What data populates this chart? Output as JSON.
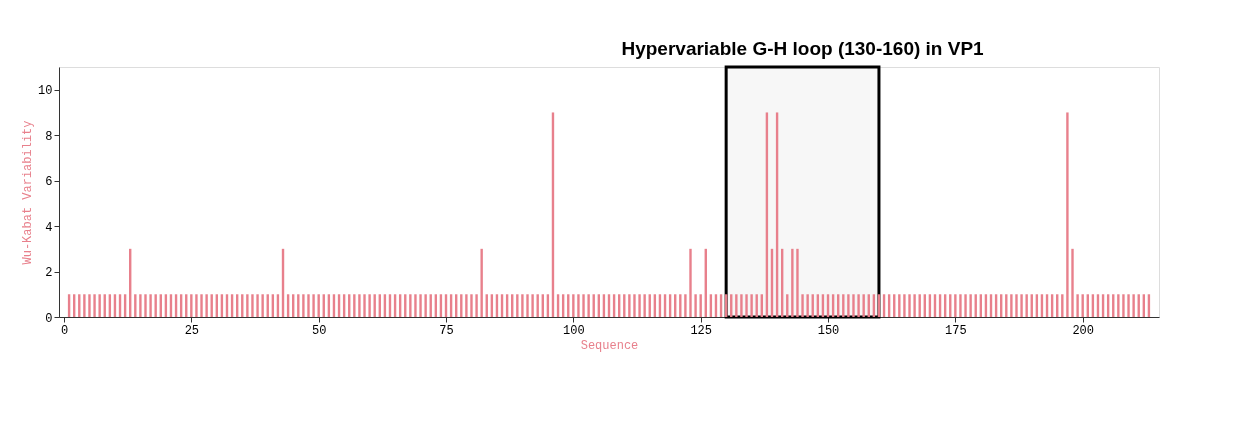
{
  "chart_data": {
    "type": "bar",
    "xlabel": "Sequence",
    "ylabel": "Wu-Kabat Variability",
    "x": [
      1,
      2,
      3,
      4,
      5,
      6,
      7,
      8,
      9,
      10,
      11,
      12,
      13,
      14,
      15,
      16,
      17,
      18,
      19,
      20,
      21,
      22,
      23,
      24,
      25,
      26,
      27,
      28,
      29,
      30,
      31,
      32,
      33,
      34,
      35,
      36,
      37,
      38,
      39,
      40,
      41,
      42,
      43,
      44,
      45,
      46,
      47,
      48,
      49,
      50,
      51,
      52,
      53,
      54,
      55,
      56,
      57,
      58,
      59,
      60,
      61,
      62,
      63,
      64,
      65,
      66,
      67,
      68,
      69,
      70,
      71,
      72,
      73,
      74,
      75,
      76,
      77,
      78,
      79,
      80,
      81,
      82,
      83,
      84,
      85,
      86,
      87,
      88,
      89,
      90,
      91,
      92,
      93,
      94,
      95,
      96,
      97,
      98,
      99,
      100,
      101,
      102,
      103,
      104,
      105,
      106,
      107,
      108,
      109,
      110,
      111,
      112,
      113,
      114,
      115,
      116,
      117,
      118,
      119,
      120,
      121,
      122,
      123,
      124,
      125,
      126,
      127,
      128,
      129,
      130,
      131,
      132,
      133,
      134,
      135,
      136,
      137,
      138,
      139,
      140,
      141,
      142,
      143,
      144,
      145,
      146,
      147,
      148,
      149,
      150,
      151,
      152,
      153,
      154,
      155,
      156,
      157,
      158,
      159,
      160,
      161,
      162,
      163,
      164,
      165,
      166,
      167,
      168,
      169,
      170,
      171,
      172,
      173,
      174,
      175,
      176,
      177,
      178,
      179,
      180,
      181,
      182,
      183,
      184,
      185,
      186,
      187,
      188,
      189,
      190,
      191,
      192,
      193,
      194,
      195,
      196,
      197,
      198,
      199,
      200,
      201,
      202,
      203,
      204,
      205,
      206,
      207,
      208,
      209,
      210,
      211,
      212,
      213
    ],
    "values": [
      1,
      1,
      1,
      1,
      1,
      1,
      1,
      1,
      1,
      1,
      1,
      1,
      3,
      1,
      1,
      1,
      1,
      1,
      1,
      1,
      1,
      1,
      1,
      1,
      1,
      1,
      1,
      1,
      1,
      1,
      1,
      1,
      1,
      1,
      1,
      1,
      1,
      1,
      1,
      1,
      1,
      1,
      3,
      1,
      1,
      1,
      1,
      1,
      1,
      1,
      1,
      1,
      1,
      1,
      1,
      1,
      1,
      1,
      1,
      1,
      1,
      1,
      1,
      1,
      1,
      1,
      1,
      1,
      1,
      1,
      1,
      1,
      1,
      1,
      1,
      1,
      1,
      1,
      1,
      1,
      1,
      3,
      1,
      1,
      1,
      1,
      1,
      1,
      1,
      1,
      1,
      1,
      1,
      1,
      1,
      9,
      1,
      1,
      1,
      1,
      1,
      1,
      1,
      1,
      1,
      1,
      1,
      1,
      1,
      1,
      1,
      1,
      1,
      1,
      1,
      1,
      1,
      1,
      1,
      1,
      1,
      1,
      3,
      1,
      1,
      3,
      1,
      1,
      1,
      1,
      1,
      1,
      1,
      1,
      1,
      1,
      1,
      9,
      3,
      9,
      3,
      1,
      3,
      3,
      1,
      1,
      1,
      1,
      1,
      1,
      1,
      1,
      1,
      1,
      1,
      1,
      1,
      1,
      1,
      1,
      1,
      1,
      1,
      1,
      1,
      1,
      1,
      1,
      1,
      1,
      1,
      1,
      1,
      1,
      1,
      1,
      1,
      1,
      1,
      1,
      1,
      1,
      1,
      1,
      1,
      1,
      1,
      1,
      1,
      1,
      1,
      1,
      1,
      1,
      1,
      1,
      9,
      3,
      1,
      1,
      1,
      1,
      1,
      1,
      1,
      1,
      1,
      1,
      1,
      1,
      1,
      1,
      1
    ],
    "color": "#e8808c",
    "xlim": [
      0,
      214
    ],
    "xticks": [
      0,
      25,
      50,
      75,
      100,
      125,
      150,
      175,
      200
    ],
    "ylim": [
      0,
      11
    ],
    "yticks": [
      0,
      2,
      4,
      6,
      8,
      10
    ],
    "bands": [
      {
        "axis": "x",
        "from": 130,
        "to": 160,
        "label": "Hypervariable G-H loop (130-160) in VP1",
        "color": "#000000"
      }
    ]
  }
}
